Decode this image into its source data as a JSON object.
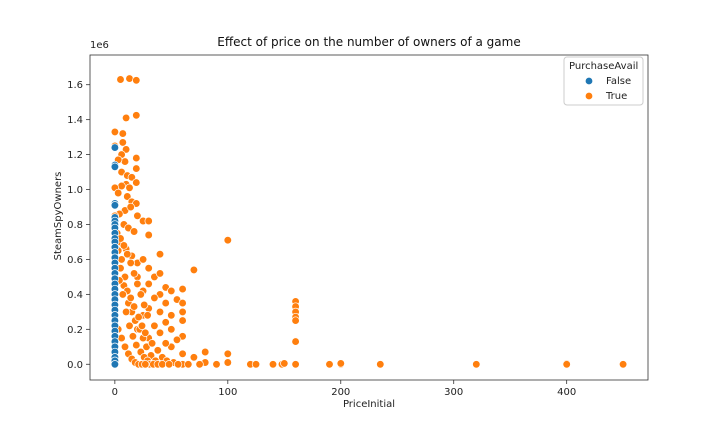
{
  "chart_data": {
    "type": "scatter",
    "title": "Effect of price on the number of owners of a game",
    "xlabel": "PriceInitial",
    "ylabel": "SteamSpyOwners",
    "offset_label": "1e6",
    "xlim": [
      -22,
      472
    ],
    "ylim": [
      -0.09,
      1.77
    ],
    "x_ticks": [
      0,
      100,
      200,
      300,
      400
    ],
    "x_tick_labels": [
      "0",
      "100",
      "200",
      "300",
      "400"
    ],
    "y_ticks": [
      0.0,
      0.2,
      0.4,
      0.6,
      0.8,
      1.0,
      1.2,
      1.4,
      1.6
    ],
    "y_tick_labels": [
      "0.0",
      "0.2",
      "0.4",
      "0.6",
      "0.8",
      "1.0",
      "1.2",
      "1.4",
      "1.6"
    ],
    "grid": false,
    "legend": {
      "title": "PurchaseAvail",
      "placement": "top-right",
      "entries": [
        "False",
        "True"
      ]
    },
    "colors": {
      "False": "#1f77b4",
      "True": "#ff7f0e"
    },
    "series": [
      {
        "name": "True",
        "points": [
          [
            5,
            1.63
          ],
          [
            13,
            1.635
          ],
          [
            19,
            1.625
          ],
          [
            19,
            1.425
          ],
          [
            10,
            1.41
          ],
          [
            0,
            1.33
          ],
          [
            7,
            1.32
          ],
          [
            0,
            1.25
          ],
          [
            7,
            1.27
          ],
          [
            10,
            1.23
          ],
          [
            6,
            1.2
          ],
          [
            19,
            1.18
          ],
          [
            9,
            1.16
          ],
          [
            3,
            1.17
          ],
          [
            19,
            1.12
          ],
          [
            6,
            1.1
          ],
          [
            11,
            1.08
          ],
          [
            15,
            1.07
          ],
          [
            19,
            1.04
          ],
          [
            10,
            1.03
          ],
          [
            6,
            1.02
          ],
          [
            13,
            1.01
          ],
          [
            0,
            1.01
          ],
          [
            3,
            0.98
          ],
          [
            11,
            0.96
          ],
          [
            15,
            0.93
          ],
          [
            19,
            0.92
          ],
          [
            9,
            0.88
          ],
          [
            14,
            0.9
          ],
          [
            25,
            0.82
          ],
          [
            30,
            0.82
          ],
          [
            20,
            0.85
          ],
          [
            4,
            0.86
          ],
          [
            0,
            0.85
          ],
          [
            8,
            0.8
          ],
          [
            12,
            0.78
          ],
          [
            17,
            0.76
          ],
          [
            30,
            0.74
          ],
          [
            40,
            0.63
          ],
          [
            100,
            0.71
          ],
          [
            70,
            0.54
          ],
          [
            5,
            0.7
          ],
          [
            10,
            0.66
          ],
          [
            15,
            0.62
          ],
          [
            20,
            0.58
          ],
          [
            25,
            0.6
          ],
          [
            30,
            0.55
          ],
          [
            35,
            0.5
          ],
          [
            40,
            0.52
          ],
          [
            45,
            0.44
          ],
          [
            60,
            0.43
          ],
          [
            50,
            0.42
          ],
          [
            55,
            0.37
          ],
          [
            60,
            0.35
          ],
          [
            40,
            0.4
          ],
          [
            30,
            0.46
          ],
          [
            25,
            0.42
          ],
          [
            20,
            0.5
          ],
          [
            35,
            0.38
          ],
          [
            45,
            0.35
          ],
          [
            160,
            0.36
          ],
          [
            160,
            0.33
          ],
          [
            160,
            0.3
          ],
          [
            160,
            0.27
          ],
          [
            160,
            0.25
          ],
          [
            160,
            0.13
          ],
          [
            60,
            0.3
          ],
          [
            60,
            0.25
          ],
          [
            50,
            0.28
          ],
          [
            40,
            0.3
          ],
          [
            30,
            0.32
          ],
          [
            25,
            0.28
          ],
          [
            35,
            0.22
          ],
          [
            45,
            0.24
          ],
          [
            50,
            0.2
          ],
          [
            60,
            0.16
          ],
          [
            55,
            0.14
          ],
          [
            40,
            0.18
          ],
          [
            30,
            0.15
          ],
          [
            20,
            0.2
          ],
          [
            80,
            0.07
          ],
          [
            100,
            0.06
          ],
          [
            60,
            0.06
          ],
          [
            50,
            0.1
          ],
          [
            45,
            0.12
          ],
          [
            70,
            0.04
          ],
          [
            90,
            0.0
          ],
          [
            80,
            0.01
          ],
          [
            60,
            0.0
          ],
          [
            100,
            0.01
          ],
          [
            120,
            0.0
          ],
          [
            125,
            0.0
          ],
          [
            140,
            0.0
          ],
          [
            148,
            0.0
          ],
          [
            150,
            0.005
          ],
          [
            160,
            0.0
          ],
          [
            190,
            0.0
          ],
          [
            200,
            0.0
          ],
          [
            200,
            0.005
          ],
          [
            235,
            0.0
          ],
          [
            320,
            0.0
          ],
          [
            400,
            0.005
          ],
          [
            400,
            0.0
          ],
          [
            450,
            0.0
          ],
          [
            5,
            0.55
          ],
          [
            8,
            0.45
          ],
          [
            12,
            0.35
          ],
          [
            15,
            0.3
          ],
          [
            18,
            0.25
          ],
          [
            22,
            0.2
          ],
          [
            25,
            0.15
          ],
          [
            28,
            0.1
          ],
          [
            32,
            0.05
          ],
          [
            36,
            0.02
          ],
          [
            3,
            0.65
          ],
          [
            6,
            0.6
          ],
          [
            9,
            0.5
          ],
          [
            11,
            0.42
          ],
          [
            14,
            0.38
          ],
          [
            17,
            0.33
          ],
          [
            21,
            0.27
          ],
          [
            24,
            0.22
          ],
          [
            27,
            0.18
          ],
          [
            33,
            0.12
          ],
          [
            38,
            0.08
          ],
          [
            42,
            0.04
          ],
          [
            46,
            0.02
          ],
          [
            52,
            0.01
          ],
          [
            56,
            0.0
          ],
          [
            4,
            0.48
          ],
          [
            7,
            0.4
          ],
          [
            10,
            0.3
          ],
          [
            13,
            0.22
          ],
          [
            16,
            0.16
          ],
          [
            19,
            0.11
          ],
          [
            23,
            0.07
          ],
          [
            26,
            0.04
          ],
          [
            29,
            0.02
          ],
          [
            31,
            0.0
          ],
          [
            2,
            0.75
          ],
          [
            5,
            0.72
          ],
          [
            8,
            0.68
          ],
          [
            11,
            0.63
          ],
          [
            14,
            0.58
          ],
          [
            17,
            0.52
          ],
          [
            20,
            0.46
          ],
          [
            23,
            0.4
          ],
          [
            26,
            0.34
          ],
          [
            29,
            0.28
          ],
          [
            3,
            0.2
          ],
          [
            6,
            0.15
          ],
          [
            9,
            0.1
          ],
          [
            12,
            0.06
          ],
          [
            15,
            0.03
          ],
          [
            18,
            0.01
          ],
          [
            21,
            0.0
          ],
          [
            24,
            0.0
          ],
          [
            27,
            0.0
          ],
          [
            34,
            0.0
          ],
          [
            38,
            0.0
          ],
          [
            42,
            0.0
          ],
          [
            48,
            0.0
          ],
          [
            65,
            0.0
          ],
          [
            75,
            0.0
          ]
        ]
      },
      {
        "name": "False",
        "points": [
          [
            0,
            1.14
          ],
          [
            0,
            1.13
          ],
          [
            0,
            1.24
          ],
          [
            0,
            0.92
          ],
          [
            0,
            0.91
          ],
          [
            0,
            0.84
          ],
          [
            0,
            0.82
          ],
          [
            0,
            0.8
          ],
          [
            0,
            0.78
          ],
          [
            0,
            0.75
          ],
          [
            0,
            0.72
          ],
          [
            0,
            0.7
          ],
          [
            0,
            0.67
          ],
          [
            0,
            0.64
          ],
          [
            0,
            0.61
          ],
          [
            0,
            0.58
          ],
          [
            0,
            0.55
          ],
          [
            0,
            0.52
          ],
          [
            0,
            0.49
          ],
          [
            0,
            0.46
          ],
          [
            0,
            0.43
          ],
          [
            0,
            0.4
          ],
          [
            0,
            0.37
          ],
          [
            0,
            0.34
          ],
          [
            0,
            0.31
          ],
          [
            0,
            0.28
          ],
          [
            0,
            0.25
          ],
          [
            0,
            0.22
          ],
          [
            0,
            0.19
          ],
          [
            0,
            0.16
          ],
          [
            0,
            0.13
          ],
          [
            0,
            0.1
          ],
          [
            0,
            0.07
          ],
          [
            0,
            0.04
          ],
          [
            0,
            0.02
          ],
          [
            0,
            0.0
          ]
        ]
      }
    ]
  }
}
